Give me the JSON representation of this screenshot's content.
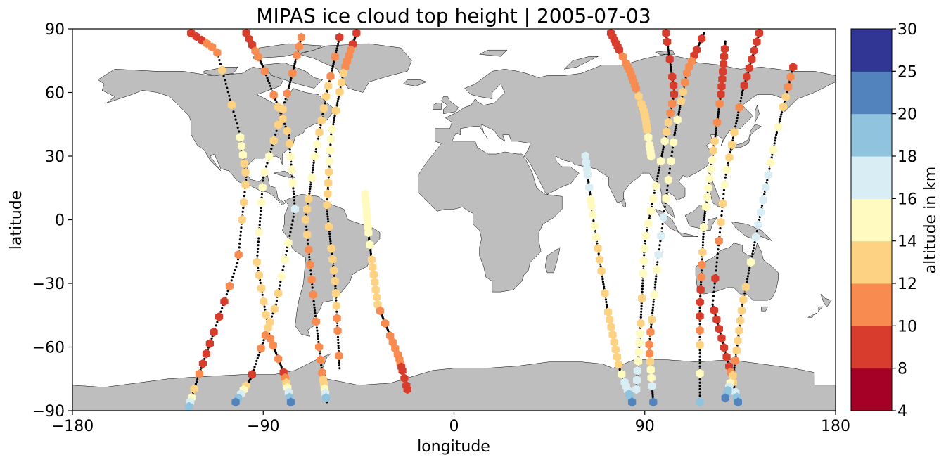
{
  "chart_data": {
    "type": "scatter",
    "title": "MIPAS ice cloud top height | 2005-07-03",
    "xlabel": "longitude",
    "ylabel": "latitude",
    "xlim": [
      -180,
      180
    ],
    "ylim": [
      -90,
      90
    ],
    "x_ticks": [
      "−180",
      "−90",
      "0",
      "90",
      "180"
    ],
    "y_ticks": [
      "90",
      "60",
      "30",
      "0",
      "−30",
      "−60",
      "−90"
    ],
    "grid": false,
    "colorbar": {
      "label": "altitude in km",
      "bounds": [
        4,
        8,
        10,
        12,
        14,
        16,
        18,
        20,
        25,
        30
      ],
      "tick_labels": [
        "4",
        "8",
        "10",
        "12",
        "14",
        "16",
        "18",
        "20",
        "25",
        "30"
      ],
      "colors": [
        "#a50026",
        "#d73027",
        "#f46d43",
        "#fdae61",
        "#fee090",
        "#e0f3f8",
        "#abd9e9",
        "#74add1",
        "#4575b4",
        "#313695"
      ],
      "colors_rendered": [
        "#a50026",
        "#d73c2c",
        "#f88b50",
        "#fdd283",
        "#fffac0",
        "#d8edf4",
        "#8fc3de",
        "#5383bc",
        "#313695"
      ]
    },
    "land_color": "#bebebe",
    "orbits": [
      {
        "track": [
          [
            -124,
            88
          ],
          [
            -112,
            80
          ],
          [
            -101,
            40
          ],
          [
            -98,
            20
          ],
          [
            -102,
            -20
          ],
          [
            -114,
            -55
          ],
          [
            -122,
            -78
          ],
          [
            -125,
            -88
          ]
        ],
        "heights": [
          9,
          12,
          16,
          14,
          12,
          9,
          12,
          20
        ]
      },
      {
        "track": [
          [
            -98,
            88
          ],
          [
            -90,
            72
          ],
          [
            -78,
            40
          ],
          [
            -75,
            5
          ],
          [
            -84,
            -40
          ],
          [
            -96,
            -75
          ],
          [
            -103,
            -86
          ]
        ],
        "heights": [
          9,
          11,
          13,
          17,
          13,
          9,
          20
        ]
      },
      {
        "track": [
          [
            -72,
            86
          ],
          [
            -78,
            62
          ],
          [
            -90,
            20
          ],
          [
            -93,
            -20
          ],
          [
            -87,
            -55
          ],
          [
            -80,
            -73
          ],
          [
            -77,
            -86
          ]
        ],
        "heights": [
          10,
          11,
          14,
          13,
          11,
          9,
          20
        ]
      },
      {
        "track": [
          [
            -54,
            86
          ],
          [
            -60,
            60
          ],
          [
            -66,
            28
          ],
          [
            -70,
            0
          ],
          [
            -66,
            -40
          ],
          [
            -62,
            -74
          ],
          [
            -60,
            -86
          ]
        ],
        "heights": [
          9,
          13,
          15,
          13,
          11,
          12,
          20
        ]
      },
      {
        "track": [
          [
            -46,
            88
          ],
          [
            -52,
            70
          ],
          [
            -58,
            40
          ],
          [
            -60,
            5
          ],
          [
            -56,
            -30
          ],
          [
            -54,
            -70
          ]
        ],
        "heights": [
          8,
          12,
          14,
          13,
          12,
          11
        ]
      },
      {
        "track": [
          [
            -42,
            12
          ],
          [
            -40,
            -10
          ],
          [
            -36,
            -40
          ],
          [
            -26,
            -65
          ],
          [
            -22,
            -80
          ]
        ],
        "heights": [
          16,
          15,
          13,
          11,
          10
        ]
      },
      {
        "track": [
          [
            74,
            88
          ],
          [
            83,
            70
          ],
          [
            90,
            50
          ],
          [
            93,
            30
          ]
        ],
        "heights": [
          9,
          11,
          13,
          15
        ]
      },
      {
        "track": [
          [
            62,
            30
          ],
          [
            65,
            5
          ],
          [
            72,
            -40
          ],
          [
            78,
            -70
          ],
          [
            84,
            -86
          ]
        ],
        "heights": [
          17,
          14,
          12,
          12,
          20
        ]
      },
      {
        "track": [
          [
            100,
            88
          ],
          [
            104,
            60
          ],
          [
            98,
            30
          ],
          [
            90,
            -10
          ],
          [
            88,
            -50
          ],
          [
            86,
            -80
          ]
        ],
        "heights": [
          9,
          10,
          16,
          15,
          14,
          18
        ]
      },
      {
        "track": [
          [
            118,
            88
          ],
          [
            110,
            70
          ],
          [
            104,
            40
          ],
          [
            96,
            -20
          ],
          [
            92,
            -60
          ],
          [
            94,
            -86
          ]
        ],
        "heights": [
          9,
          10,
          15,
          16,
          10,
          20
        ]
      },
      {
        "track": [
          [
            128,
            84
          ],
          [
            126,
            60
          ],
          [
            122,
            30
          ],
          [
            118,
            0
          ],
          [
            116,
            -40
          ],
          [
            116,
            -86
          ]
        ],
        "heights": [
          10,
          10,
          15,
          16,
          9,
          20
        ]
      },
      {
        "track": [
          [
            144,
            88
          ],
          [
            136,
            60
          ],
          [
            128,
            20
          ],
          [
            122,
            -40
          ],
          [
            130,
            -70
          ],
          [
            134,
            -86
          ]
        ],
        "heights": [
          8,
          10,
          15,
          8,
          9,
          20
        ]
      },
      {
        "track": [
          [
            160,
            72
          ],
          [
            152,
            40
          ],
          [
            144,
            0
          ],
          [
            136,
            -40
          ],
          [
            132,
            -72
          ],
          [
            128,
            -84
          ]
        ],
        "heights": [
          9,
          14,
          17,
          12,
          11,
          20
        ]
      }
    ]
  }
}
